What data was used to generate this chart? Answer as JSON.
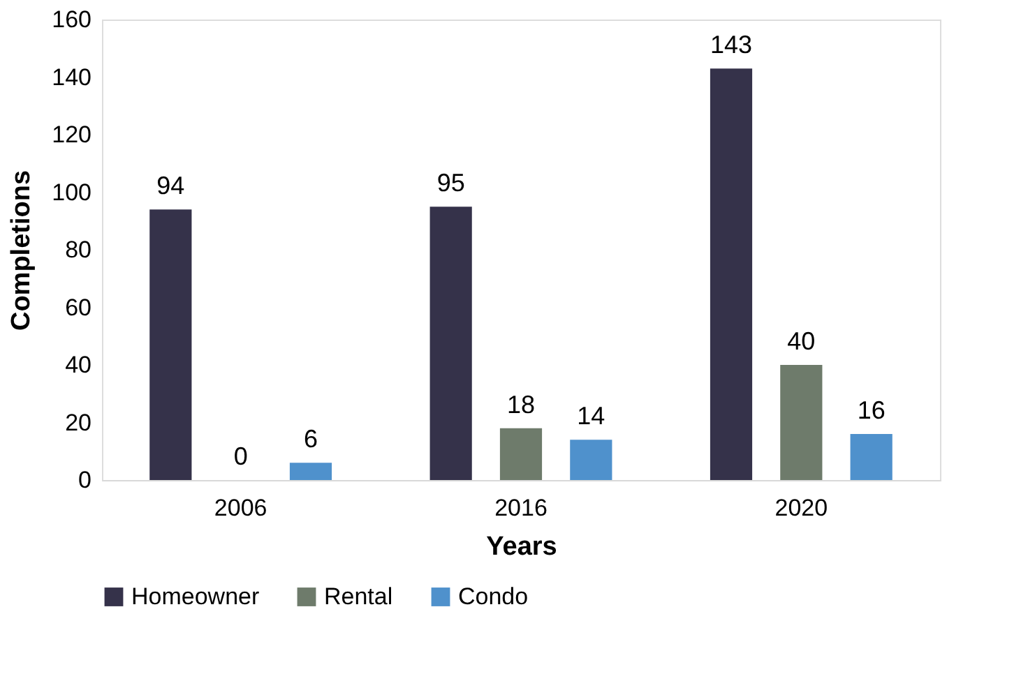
{
  "chart_data": {
    "type": "bar",
    "xlabel": "Years",
    "ylabel": "Completions",
    "categories": [
      "2006",
      "2016",
      "2020"
    ],
    "series": [
      {
        "name": "Homeowner",
        "color": "#35324a",
        "values": [
          94,
          95,
          143
        ]
      },
      {
        "name": "Rental",
        "color": "#6e7b6b",
        "values": [
          0,
          18,
          40
        ]
      },
      {
        "name": "Condo",
        "color": "#4f91cc",
        "values": [
          6,
          14,
          16
        ]
      }
    ],
    "ylim": [
      0,
      160
    ],
    "yticks": [
      0,
      20,
      40,
      60,
      80,
      100,
      120,
      140,
      160
    ],
    "data_labels": true,
    "legend": "bottom"
  }
}
